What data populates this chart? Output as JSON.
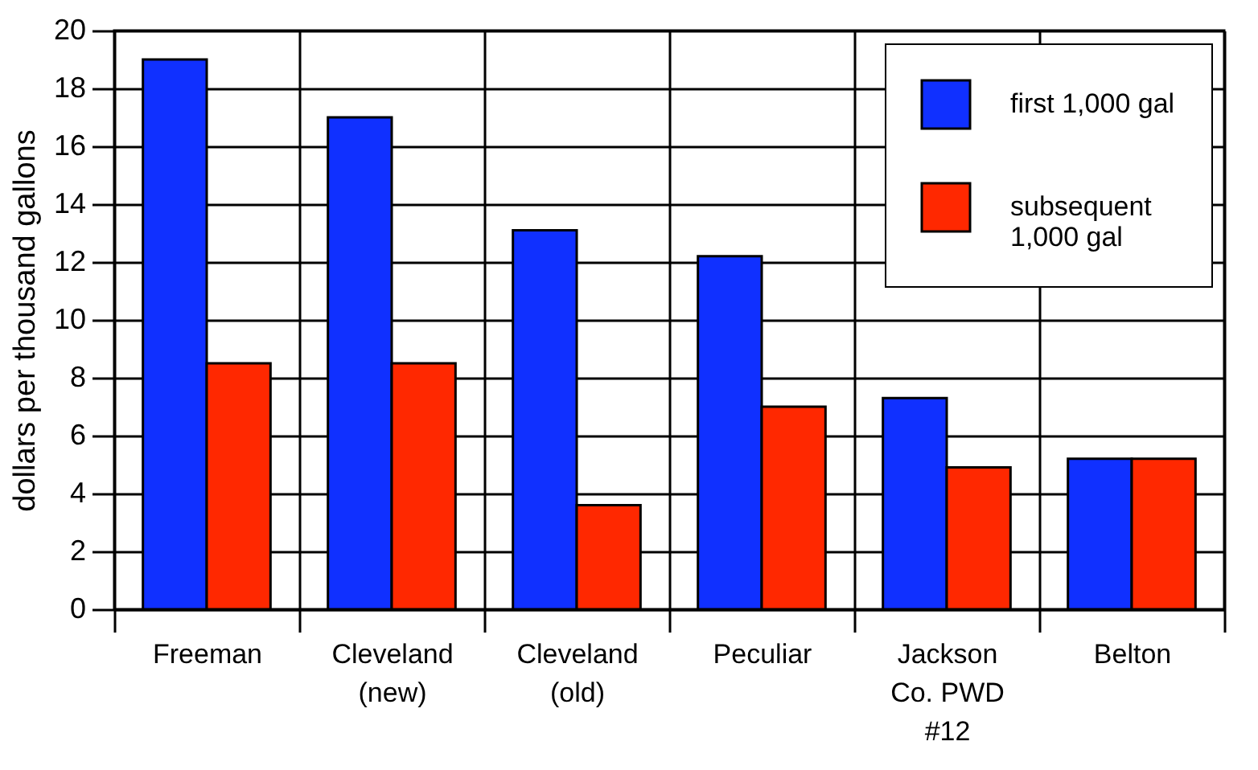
{
  "chart_data": {
    "type": "bar",
    "ylabel": "dollars per thousand gallons",
    "categories": [
      "Freeman",
      "Cleveland\n(new)",
      "Cleveland\n(old)",
      "Peculiar",
      "Jackson\nCo. PWD\n#12",
      "Belton"
    ],
    "series": [
      {
        "name": "first 1,000 gal",
        "color": "#1030ff",
        "values": [
          19,
          17,
          13.1,
          12.2,
          7.3,
          5.2
        ]
      },
      {
        "name": "subsequent\n1,000 gal",
        "color": "#ff2800",
        "values": [
          8.5,
          8.5,
          3.6,
          7,
          4.9,
          5.2
        ]
      }
    ],
    "ylim": [
      0,
      20
    ],
    "yticks": [
      0,
      2,
      4,
      6,
      8,
      10,
      12,
      14,
      16,
      18,
      20
    ],
    "grid": true,
    "legend": "top right"
  }
}
